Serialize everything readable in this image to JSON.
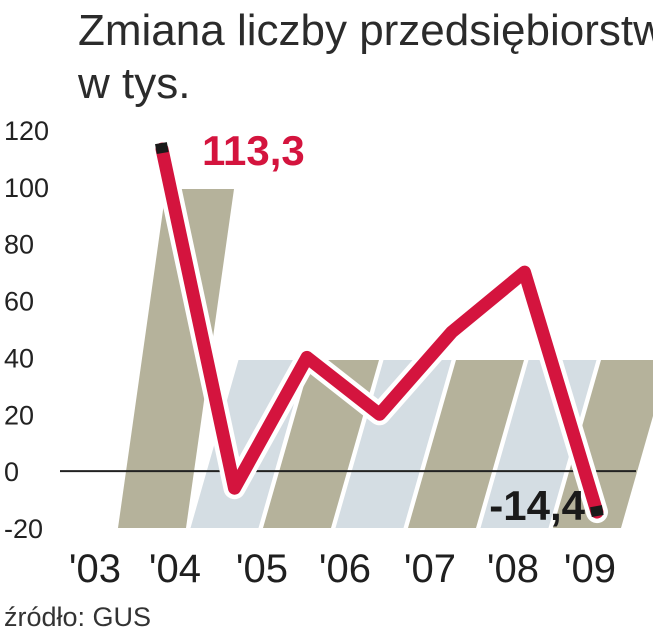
{
  "title": "Zmiana liczby przedsiębiorstw",
  "subtitle": "w tys.",
  "source": "źródło: GUS",
  "colors": {
    "line": "#d4143e",
    "band_dark": "#a8a48a",
    "band_light": "#cdd7de",
    "marker": "#1a1a1a"
  },
  "chart_data": {
    "type": "line",
    "categories": [
      "'03",
      "'04",
      "'05",
      "'06",
      "'07",
      "'08",
      "'09"
    ],
    "series": [
      {
        "values": [
          113.3,
          -6,
          40,
          20,
          49,
          70,
          -14.4
        ]
      }
    ],
    "y_ticks": [
      "120",
      "100",
      "80",
      "60",
      "40",
      "20",
      "0",
      "-20"
    ],
    "ylim": [
      -20,
      120
    ],
    "labels": {
      "max": "113,3",
      "min": "-14,4"
    },
    "grid": false
  }
}
